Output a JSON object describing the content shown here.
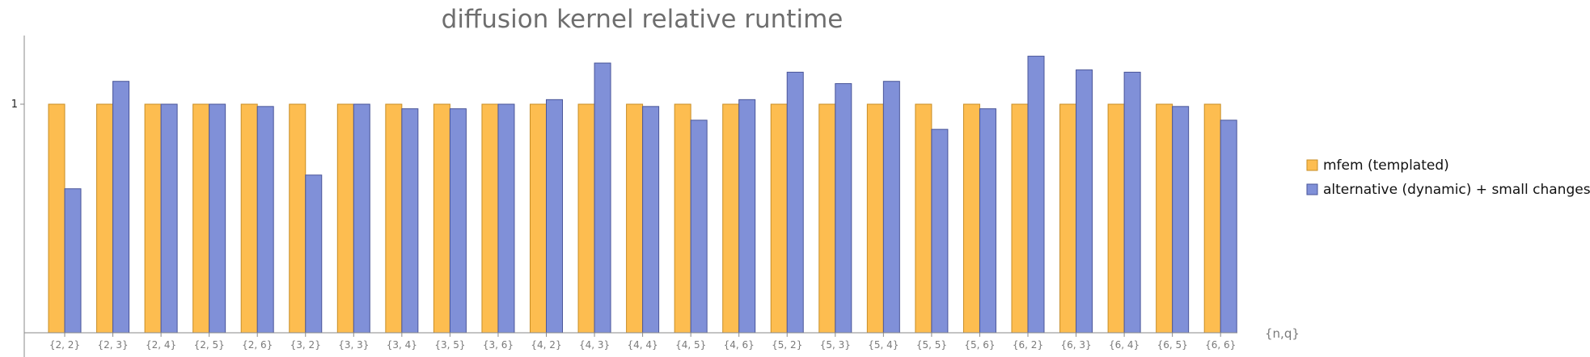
{
  "chart_data": {
    "type": "bar",
    "title": "diffusion kernel relative runtime",
    "xlabel": "{n,q}",
    "ylabel": "",
    "ylim": [
      0,
      1.3
    ],
    "yticks": [
      1
    ],
    "ytick_labels": [
      "1"
    ],
    "grid": false,
    "legend_position": "right",
    "categories": [
      "{2, 2}",
      "{2, 3}",
      "{2, 4}",
      "{2, 5}",
      "{2, 6}",
      "{3, 2}",
      "{3, 3}",
      "{3, 4}",
      "{3, 5}",
      "{3, 6}",
      "{4, 2}",
      "{4, 3}",
      "{4, 4}",
      "{4, 5}",
      "{4, 6}",
      "{5, 2}",
      "{5, 3}",
      "{5, 4}",
      "{5, 5}",
      "{5, 6}",
      "{6, 2}",
      "{6, 3}",
      "{6, 4}",
      "{6, 5}",
      "{6, 6}"
    ],
    "series": [
      {
        "name": "mfem (templated)",
        "color": "#fdbd50",
        "stroke": "#c88e26",
        "values": [
          1,
          1,
          1,
          1,
          1,
          1,
          1,
          1,
          1,
          1,
          1,
          1,
          1,
          1,
          1,
          1,
          1,
          1,
          1,
          1,
          1,
          1,
          1,
          1,
          1
        ]
      },
      {
        "name": "alternative (dynamic) + small changes",
        "color": "#8090d8",
        "stroke": "#4a5699",
        "values": [
          0.63,
          1.1,
          1.0,
          1.0,
          0.99,
          0.69,
          1.0,
          0.98,
          0.98,
          1.0,
          1.02,
          1.18,
          0.99,
          0.93,
          1.02,
          1.14,
          1.09,
          1.1,
          0.89,
          0.98,
          1.21,
          1.15,
          1.14,
          0.99,
          0.93
        ]
      }
    ]
  }
}
